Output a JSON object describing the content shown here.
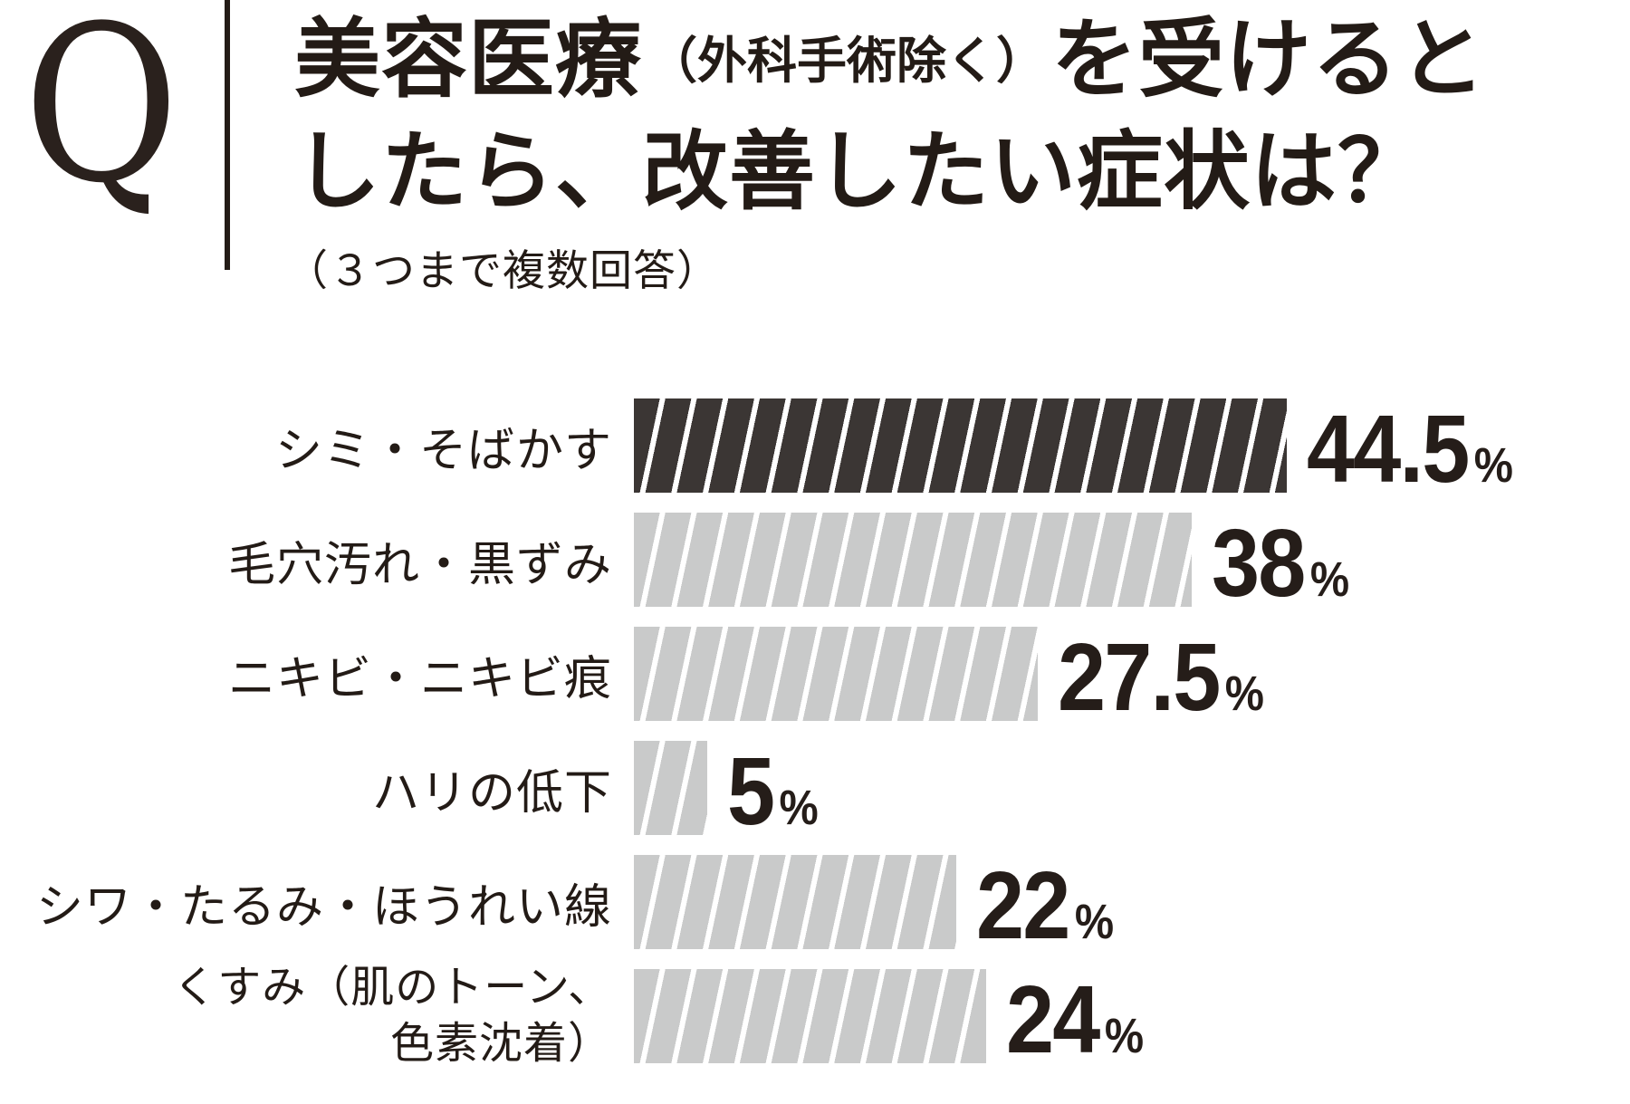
{
  "header": {
    "q_label": "Q",
    "title_line1_main": "美容医療",
    "title_line1_paren": "（外科手術除く）",
    "title_line1_tail": "を受けると",
    "title_line2": "したら、改善したい症状は？",
    "subtitle": "（３つまで複数回答）"
  },
  "colors": {
    "ink": "#231b16",
    "bar_dark": "#3b3634",
    "bar_light": "#c9caca",
    "stripe": "#ffffff",
    "background": "#ffffff"
  },
  "chart_data": {
    "type": "bar",
    "orientation": "horizontal",
    "title": "美容医療（外科手術除く）を受けるとしたら、改善したい症状は？",
    "subtitle": "（３つまで複数回答）",
    "unit": "%",
    "xlim": [
      0,
      47
    ],
    "grid": false,
    "legend": false,
    "categories": [
      "シミ・そばかす",
      "毛穴汚れ・黒ずみ",
      "ニキビ・ニキビ痕",
      "ハリの低下",
      "シワ・たるみ・ほうれい線",
      "くすみ（肌のトーン、色素沈着）"
    ],
    "values": [
      44.5,
      38,
      27.5,
      5,
      22,
      24
    ],
    "rows": [
      {
        "label": "シミ・そばかす",
        "value": 44.5,
        "value_label": "44.5",
        "unit": "%",
        "emphasis": true
      },
      {
        "label": "毛穴汚れ・黒ずみ",
        "value": 38,
        "value_label": "38",
        "unit": "%",
        "emphasis": false
      },
      {
        "label": "ニキビ・ニキビ痕",
        "value": 27.5,
        "value_label": "27.5",
        "unit": "%",
        "emphasis": false
      },
      {
        "label": "ハリの低下",
        "value": 5,
        "value_label": "5",
        "unit": "%",
        "emphasis": false
      },
      {
        "label": "シワ・たるみ・ほうれい線",
        "value": 22,
        "value_label": "22",
        "unit": "%",
        "emphasis": false
      },
      {
        "label": "くすみ（肌のトーン、色素沈着）",
        "label_lines": [
          "くすみ（肌のトーン、",
          "色素沈着）"
        ],
        "value": 24,
        "value_label": "24",
        "unit": "%",
        "emphasis": false
      }
    ]
  }
}
